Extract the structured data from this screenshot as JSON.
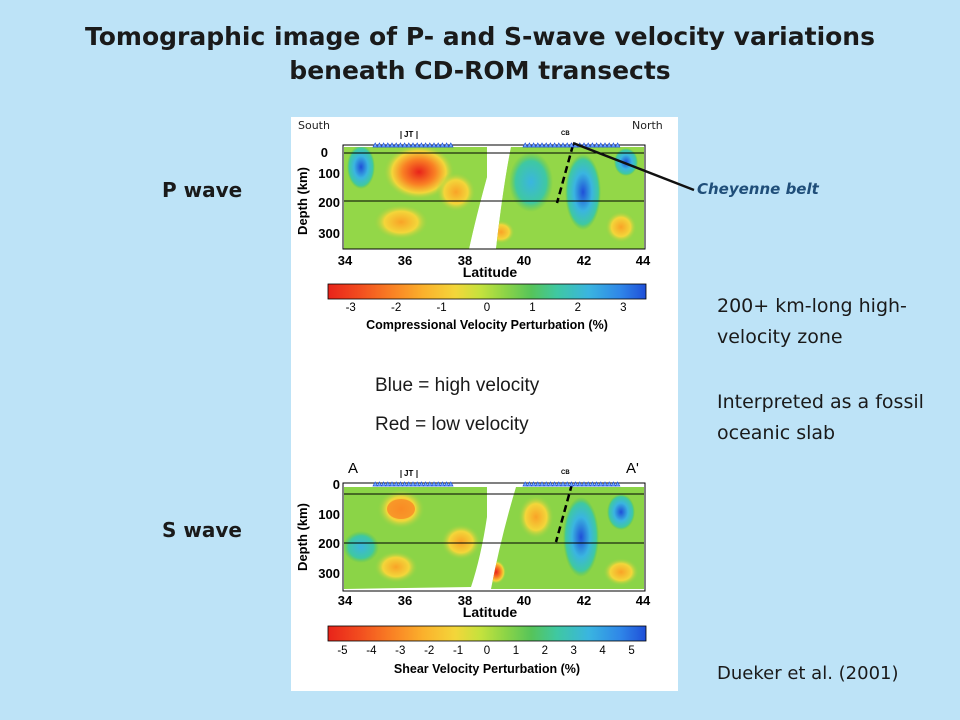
{
  "slide": {
    "title_line1": "Tomographic image of P- and S-wave velocity variations",
    "title_line2": "beneath CD-ROM transects",
    "p_wave_label": "P wave",
    "s_wave_label": "S wave",
    "south_label": "South",
    "north_label": "North",
    "cheyenne_label": "Cheyenne belt",
    "legend_blue": "Blue = high velocity",
    "legend_red": "Red = low velocity",
    "note_line1": "200+ km-long high-",
    "note_line2": "velocity zone",
    "note_line3": "Interpreted as a fossil",
    "note_line4": "oceanic slab",
    "citation": "Dueker et al. (2001)"
  },
  "panels": {
    "p": {
      "ylabel": "Depth (km)",
      "xlabel": "Latitude",
      "y_ticks": [
        "0",
        "100",
        "200",
        "300"
      ],
      "x_ticks": [
        "34",
        "36",
        "38",
        "40",
        "42",
        "44"
      ],
      "station_labels": [
        "JT",
        "CB"
      ],
      "colorbar_ticks": [
        "-3",
        "-2",
        "-1",
        "0",
        "1",
        "2",
        "3"
      ],
      "colorbar_label": "Compressional Velocity Perturbation (%)"
    },
    "s": {
      "ylabel": "Depth (km)",
      "xlabel": "Latitude",
      "y_ticks": [
        "0",
        "100",
        "200",
        "300"
      ],
      "x_ticks": [
        "34",
        "36",
        "38",
        "40",
        "42",
        "44"
      ],
      "station_labels": [
        "JT",
        "CB"
      ],
      "corner_left": "A",
      "corner_right": "A'",
      "colorbar_ticks": [
        "-5",
        "-4",
        "-3",
        "-2",
        "-1",
        "0",
        "1",
        "2",
        "3",
        "4",
        "5"
      ],
      "colorbar_label": "Shear Velocity Perturbation (%)"
    }
  },
  "colors": {
    "background": "#bde3f7",
    "colorbar": [
      "#e8231a",
      "#f24d1f",
      "#f98024",
      "#fbb12c",
      "#f3d63a",
      "#c4e23d",
      "#8bd447",
      "#56c45a",
      "#3fc8a2",
      "#3ab5e0",
      "#2f86e8",
      "#1f4fd8"
    ]
  }
}
